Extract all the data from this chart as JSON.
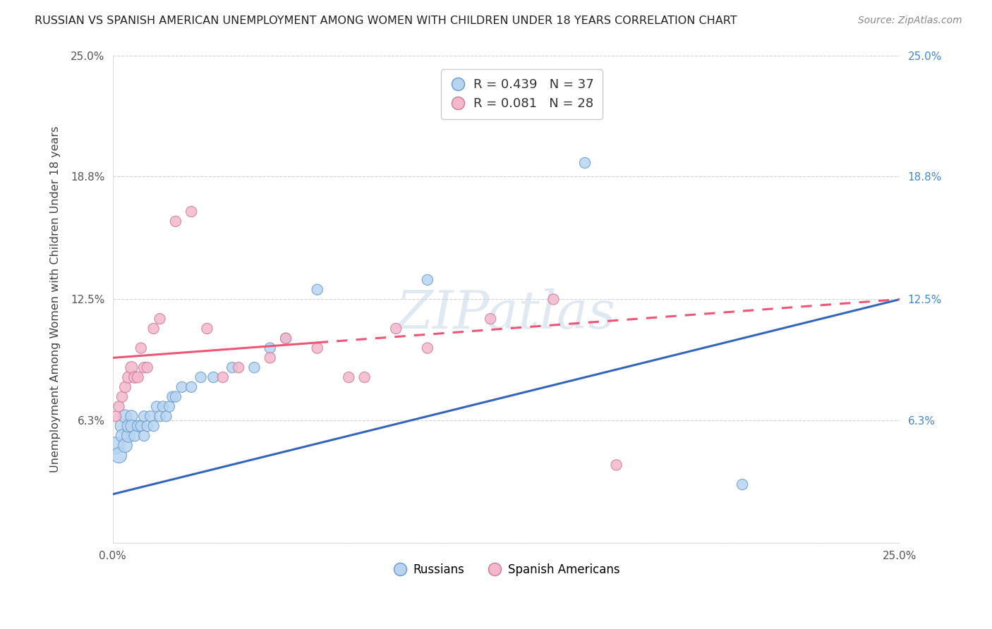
{
  "title": "RUSSIAN VS SPANISH AMERICAN UNEMPLOYMENT AMONG WOMEN WITH CHILDREN UNDER 18 YEARS CORRELATION CHART",
  "source": "Source: ZipAtlas.com",
  "ylabel": "Unemployment Among Women with Children Under 18 years",
  "xlim": [
    0,
    0.25
  ],
  "ylim": [
    0,
    0.25
  ],
  "xtick_positions": [
    0.0,
    0.025,
    0.05,
    0.075,
    0.1,
    0.125,
    0.15,
    0.175,
    0.2,
    0.225,
    0.25
  ],
  "xtick_labels": [
    "0.0%",
    "",
    "",
    "",
    "",
    "",
    "",
    "",
    "",
    "",
    "25.0%"
  ],
  "ytick_positions": [
    0.0,
    0.063,
    0.125,
    0.188,
    0.25
  ],
  "ytick_labels": [
    "",
    "6.3%",
    "12.5%",
    "18.8%",
    "25.0%"
  ],
  "ytick_labels_right": [
    "",
    "6.3%",
    "12.5%",
    "18.8%",
    "25.0%"
  ],
  "gridline_color": "#cccccc",
  "background_color": "#ffffff",
  "watermark": "ZIPatlas",
  "legend_r1": "R = 0.439",
  "legend_n1": "N = 37",
  "legend_r2": "R = 0.081",
  "legend_n2": "N = 28",
  "russian_color": "#b8d4f0",
  "russian_edge": "#6699cc",
  "spanish_color": "#f4b8cc",
  "spanish_edge": "#cc7799",
  "trend_russian_color": "#3366bb",
  "trend_spanish_color": "#ee5577",
  "russians_x": [
    0.001,
    0.002,
    0.003,
    0.003,
    0.004,
    0.004,
    0.005,
    0.005,
    0.006,
    0.006,
    0.007,
    0.008,
    0.009,
    0.01,
    0.01,
    0.011,
    0.012,
    0.013,
    0.014,
    0.015,
    0.016,
    0.017,
    0.018,
    0.019,
    0.02,
    0.022,
    0.025,
    0.028,
    0.032,
    0.038,
    0.045,
    0.05,
    0.055,
    0.065,
    0.1,
    0.15,
    0.2
  ],
  "russians_y": [
    0.05,
    0.045,
    0.06,
    0.055,
    0.05,
    0.065,
    0.055,
    0.06,
    0.065,
    0.06,
    0.055,
    0.06,
    0.06,
    0.065,
    0.055,
    0.06,
    0.065,
    0.06,
    0.07,
    0.065,
    0.07,
    0.065,
    0.07,
    0.075,
    0.075,
    0.08,
    0.08,
    0.085,
    0.085,
    0.09,
    0.09,
    0.1,
    0.105,
    0.13,
    0.135,
    0.195,
    0.03
  ],
  "russians_size": [
    300,
    250,
    200,
    160,
    200,
    180,
    180,
    160,
    150,
    150,
    130,
    130,
    120,
    120,
    120,
    120,
    120,
    120,
    120,
    120,
    120,
    120,
    120,
    120,
    120,
    120,
    120,
    120,
    120,
    120,
    120,
    120,
    120,
    120,
    120,
    120,
    120
  ],
  "spanish_x": [
    0.001,
    0.002,
    0.003,
    0.004,
    0.005,
    0.006,
    0.007,
    0.008,
    0.009,
    0.01,
    0.011,
    0.013,
    0.015,
    0.02,
    0.025,
    0.03,
    0.035,
    0.04,
    0.05,
    0.055,
    0.065,
    0.075,
    0.08,
    0.09,
    0.1,
    0.12,
    0.14,
    0.16
  ],
  "spanish_y": [
    0.065,
    0.07,
    0.075,
    0.08,
    0.085,
    0.09,
    0.085,
    0.085,
    0.1,
    0.09,
    0.09,
    0.11,
    0.115,
    0.165,
    0.17,
    0.11,
    0.085,
    0.09,
    0.095,
    0.105,
    0.1,
    0.085,
    0.085,
    0.11,
    0.1,
    0.115,
    0.125,
    0.04
  ],
  "spanish_size": [
    120,
    120,
    120,
    130,
    140,
    150,
    140,
    130,
    120,
    120,
    120,
    120,
    120,
    120,
    120,
    120,
    120,
    120,
    120,
    120,
    120,
    120,
    120,
    120,
    120,
    120,
    120,
    120
  ],
  "trend_russian_x0": 0.0,
  "trend_russian_y0": 0.025,
  "trend_russian_x1": 0.25,
  "trend_russian_y1": 0.125,
  "trend_spanish_x0": 0.0,
  "trend_spanish_y0": 0.095,
  "trend_spanish_x1": 0.25,
  "trend_spanish_y1": 0.125,
  "trend_spanish_solid_end": 0.065
}
